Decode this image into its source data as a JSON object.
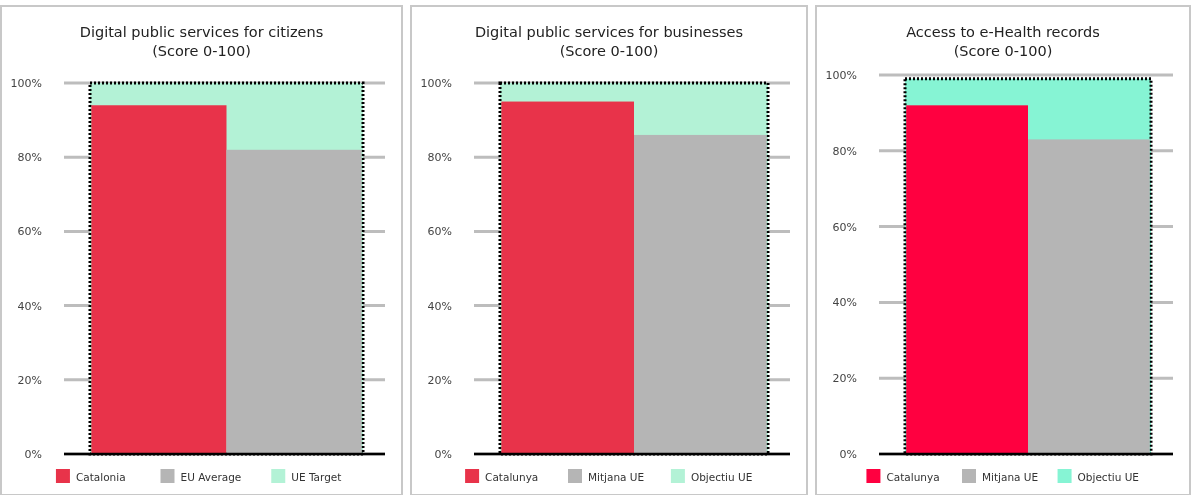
{
  "chart_data": [
    {
      "type": "bar",
      "title": "Digital public services for citizens",
      "subtitle": "(Score 0-100)",
      "categories": [
        null
      ],
      "series": [
        {
          "name": "Catalonia",
          "color": "#e8334a",
          "values": [
            94
          ]
        },
        {
          "name": "EU Average",
          "color": "#b5b5b5",
          "values": [
            82
          ]
        },
        {
          "name": "UE Target",
          "color": "#b3f2d6",
          "values": [
            100
          ],
          "line_style": "dotted"
        }
      ],
      "ylim": [
        0,
        100
      ],
      "yticks": [
        {
          "value": 0,
          "label": "0%"
        },
        {
          "value": 20,
          "label": "20%"
        },
        {
          "value": 40,
          "label": "40%"
        },
        {
          "value": 60,
          "label": "60%"
        },
        {
          "value": 80,
          "label": "80%"
        },
        {
          "value": 100,
          "label": "100%"
        }
      ],
      "grid": "y",
      "legend": "bottom"
    },
    {
      "type": "bar",
      "title": "Digital public services for businesses",
      "subtitle": "(Score 0-100)",
      "categories": [
        null
      ],
      "series": [
        {
          "name": "Catalunya",
          "color": "#e8334a",
          "values": [
            95
          ]
        },
        {
          "name": "Mitjana UE",
          "color": "#b5b5b5",
          "values": [
            86
          ]
        },
        {
          "name": "Objectiu UE",
          "color": "#b3f2d6",
          "values": [
            100
          ],
          "line_style": "dotted"
        }
      ],
      "ylim": [
        0,
        100
      ],
      "yticks": [
        {
          "value": 0,
          "label": "0%"
        },
        {
          "value": 20,
          "label": "20%"
        },
        {
          "value": 40,
          "label": "40%"
        },
        {
          "value": 60,
          "label": "60%"
        },
        {
          "value": 80,
          "label": "80%"
        },
        {
          "value": 100,
          "label": "100%"
        }
      ],
      "grid": "y",
      "legend": "bottom"
    },
    {
      "type": "bar",
      "title": "Access to e-Health records",
      "subtitle": "(Score 0-100)",
      "categories": [
        null
      ],
      "series": [
        {
          "name": "Catalunya",
          "color": "#ff0040",
          "values": [
            92
          ]
        },
        {
          "name": "Mitjana UE",
          "color": "#b5b5b5",
          "values": [
            83
          ]
        },
        {
          "name": "Objectiu UE",
          "color": "#86f4d4",
          "values": [
            99
          ],
          "line_style": "dotted"
        }
      ],
      "ylim": [
        0,
        100
      ],
      "yticks": [
        {
          "value": 0,
          "label": "0%"
        },
        {
          "value": 20,
          "label": "20%"
        },
        {
          "value": 40,
          "label": "40%"
        },
        {
          "value": 60,
          "label": "60%"
        },
        {
          "value": 80,
          "label": "80%"
        },
        {
          "value": 100,
          "label": "100%"
        }
      ],
      "grid": "y",
      "legend": "bottom"
    }
  ]
}
